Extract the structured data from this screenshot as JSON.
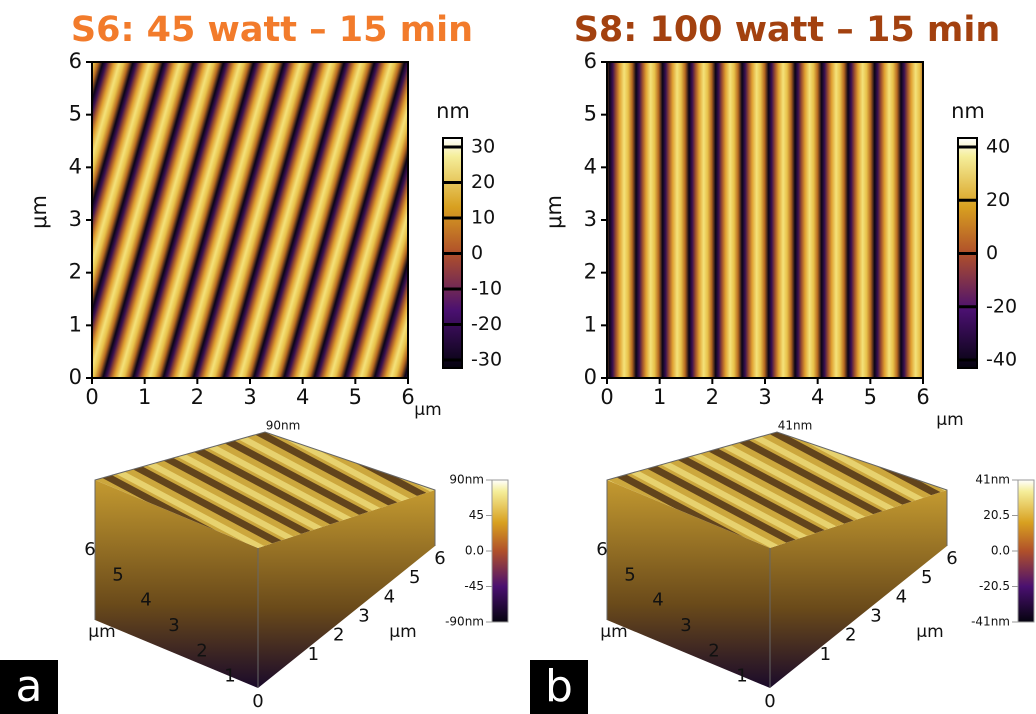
{
  "panels": [
    {
      "title": "S6: 45 watt – 15 min",
      "title_color": "#f27b2b",
      "image": {
        "y_axis_label": "μm",
        "y_ticks": [
          "0",
          "1",
          "2",
          "3",
          "4",
          "5",
          "6"
        ],
        "x_ticks": [
          "0",
          "1",
          "2",
          "3",
          "4",
          "5",
          "6"
        ],
        "x_unit": "μm"
      },
      "colorbar": {
        "unit": "nm",
        "ticks": [
          "30",
          "20",
          "10",
          "0",
          "-10",
          "-20",
          "-30"
        ]
      },
      "view_3d": {
        "top_label": "90nm",
        "colorbar_ticks": [
          "90nm",
          "45",
          "0.0",
          "-45",
          "-90nm"
        ],
        "left_ticks": [
          "1",
          "2",
          "3",
          "4",
          "5",
          "6"
        ],
        "origin": "0",
        "right_ticks": [
          "1",
          "2",
          "3",
          "4",
          "5",
          "6"
        ],
        "left_unit": "μm",
        "right_unit": "μm"
      },
      "letter": "a"
    },
    {
      "title": "S8: 100 watt – 15 min",
      "title_color": "#a3410f",
      "image": {
        "y_axis_label": "μm",
        "y_ticks": [
          "0",
          "1",
          "2",
          "3",
          "4",
          "5",
          "6"
        ],
        "x_ticks": [
          "0",
          "1",
          "2",
          "3",
          "4",
          "5",
          "6"
        ],
        "x_unit": "μm"
      },
      "colorbar": {
        "unit": "nm",
        "ticks": [
          "40",
          "20",
          "0",
          "-20",
          "-40"
        ]
      },
      "view_3d": {
        "top_label": "41nm",
        "colorbar_ticks": [
          "41nm",
          "20.5",
          "0.0",
          "-20.5",
          "-41nm"
        ],
        "left_ticks": [
          "1",
          "2",
          "3",
          "4",
          "5",
          "6"
        ],
        "origin": "0",
        "right_ticks": [
          "1",
          "2",
          "3",
          "4",
          "5",
          "6"
        ],
        "left_unit": "μm",
        "right_unit": "μm"
      },
      "letter": "b"
    }
  ]
}
